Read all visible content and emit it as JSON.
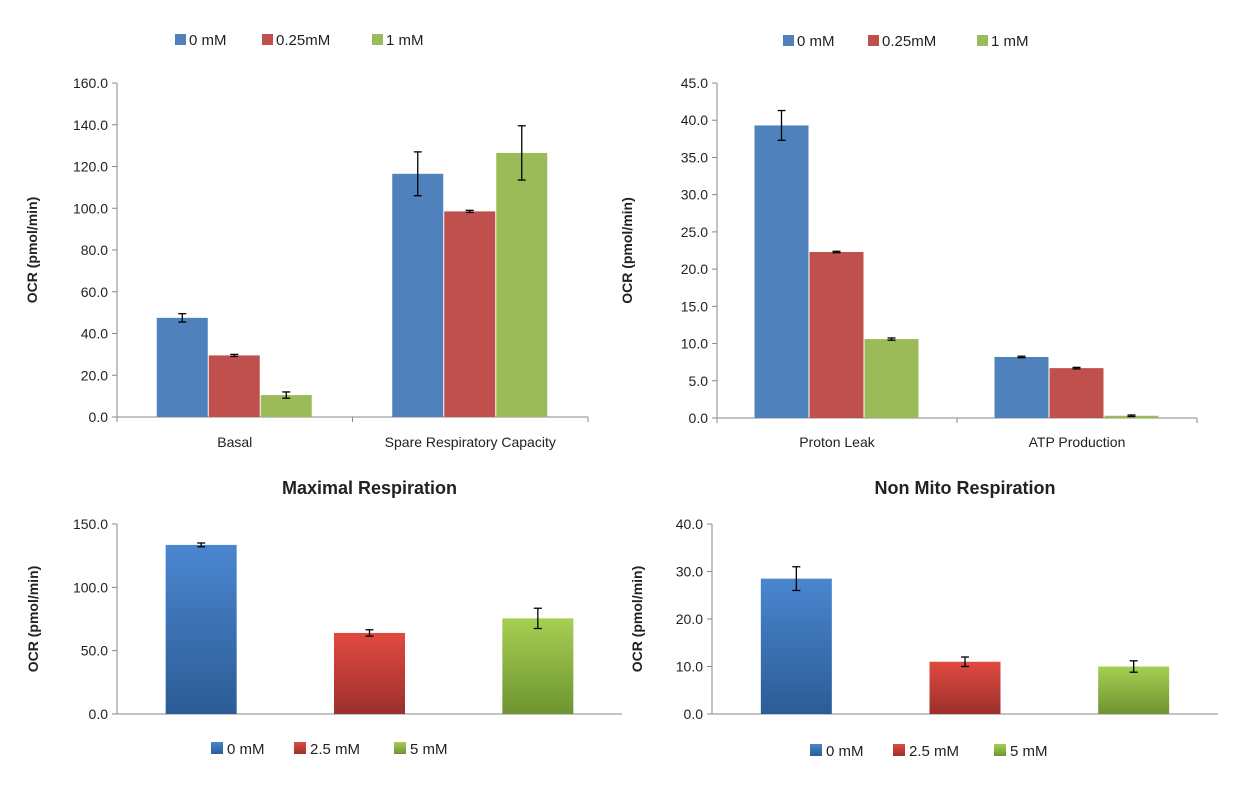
{
  "chart_data": [
    {
      "type": "bar",
      "title": "",
      "xlabel": "",
      "ylabel": "OCR (pmol/min)",
      "ylim": [
        0,
        160
      ],
      "yticks": [
        "0.0",
        "20.0",
        "40.0",
        "60.0",
        "80.0",
        "100.0",
        "120.0",
        "140.0",
        "160.0"
      ],
      "categories": [
        "Basal",
        "Spare Respiratory Capacity"
      ],
      "series": [
        {
          "name": "0 mM",
          "color": "#4f81bd",
          "values": [
            47.5,
            116.5
          ],
          "errors": [
            2.0,
            10.5
          ]
        },
        {
          "name": "0.25mM",
          "color": "#c0504d",
          "values": [
            29.5,
            98.5
          ],
          "errors": [
            0.5,
            0.5
          ]
        },
        {
          "name": "1 mM",
          "color": "#9bbb59",
          "values": [
            10.5,
            126.5
          ],
          "errors": [
            1.5,
            13.0
          ]
        }
      ],
      "legend_position": "top"
    },
    {
      "type": "bar",
      "title": "",
      "xlabel": "",
      "ylabel": "OCR (pmol/min)",
      "ylim": [
        0,
        45
      ],
      "yticks": [
        "0.0",
        "5.0",
        "10.0",
        "15.0",
        "20.0",
        "25.0",
        "30.0",
        "35.0",
        "40.0",
        "45.0"
      ],
      "categories": [
        "Proton Leak",
        "ATP Production"
      ],
      "series": [
        {
          "name": "0 mM",
          "color": "#4f81bd",
          "values": [
            39.3,
            8.2
          ],
          "errors": [
            2.0,
            0.1
          ]
        },
        {
          "name": "0.25mM",
          "color": "#c0504d",
          "values": [
            22.3,
            6.7
          ],
          "errors": [
            0.1,
            0.1
          ]
        },
        {
          "name": "1 mM",
          "color": "#9bbb59",
          "values": [
            10.6,
            0.3
          ],
          "errors": [
            0.15,
            0.1
          ]
        }
      ],
      "legend_position": "top"
    },
    {
      "type": "bar",
      "title": "Maximal Respiration",
      "xlabel": "",
      "ylabel": "OCR (pmol/min)",
      "ylim": [
        0,
        150
      ],
      "yticks": [
        "0.0",
        "50.0",
        "100.0",
        "150.0"
      ],
      "categories": [
        "0 mM",
        "2.5 mM",
        "5 mM"
      ],
      "series": [
        {
          "name": "OCR",
          "values": [
            133.5,
            64.0,
            75.5
          ],
          "errors": [
            1.5,
            2.5,
            8.0
          ]
        }
      ],
      "colors": [
        [
          "#4a86cf",
          "#2c5c96"
        ],
        [
          "#e04a40",
          "#9c2f2c"
        ],
        [
          "#a6cf52",
          "#6e9432"
        ]
      ],
      "legend": [
        "0 mM",
        "2.5 mM",
        "5 mM"
      ],
      "legend_position": "bottom"
    },
    {
      "type": "bar",
      "title": "Non Mito Respiration",
      "xlabel": "",
      "ylabel": "OCR (pmol/min)",
      "ylim": [
        0,
        40
      ],
      "yticks": [
        "0.0",
        "10.0",
        "20.0",
        "30.0",
        "40.0"
      ],
      "categories": [
        "0 mM",
        "2.5 mM",
        "5 mM"
      ],
      "series": [
        {
          "name": "OCR",
          "values": [
            28.5,
            11.0,
            10.0
          ],
          "errors": [
            2.5,
            1.0,
            1.2
          ]
        }
      ],
      "colors": [
        [
          "#4a86cf",
          "#2c5c96"
        ],
        [
          "#e04a40",
          "#9c2f2c"
        ],
        [
          "#a6cf52",
          "#6e9432"
        ]
      ],
      "legend": [
        "0 mM",
        "2.5 mM",
        "5 mM"
      ],
      "legend_position": "bottom"
    }
  ]
}
